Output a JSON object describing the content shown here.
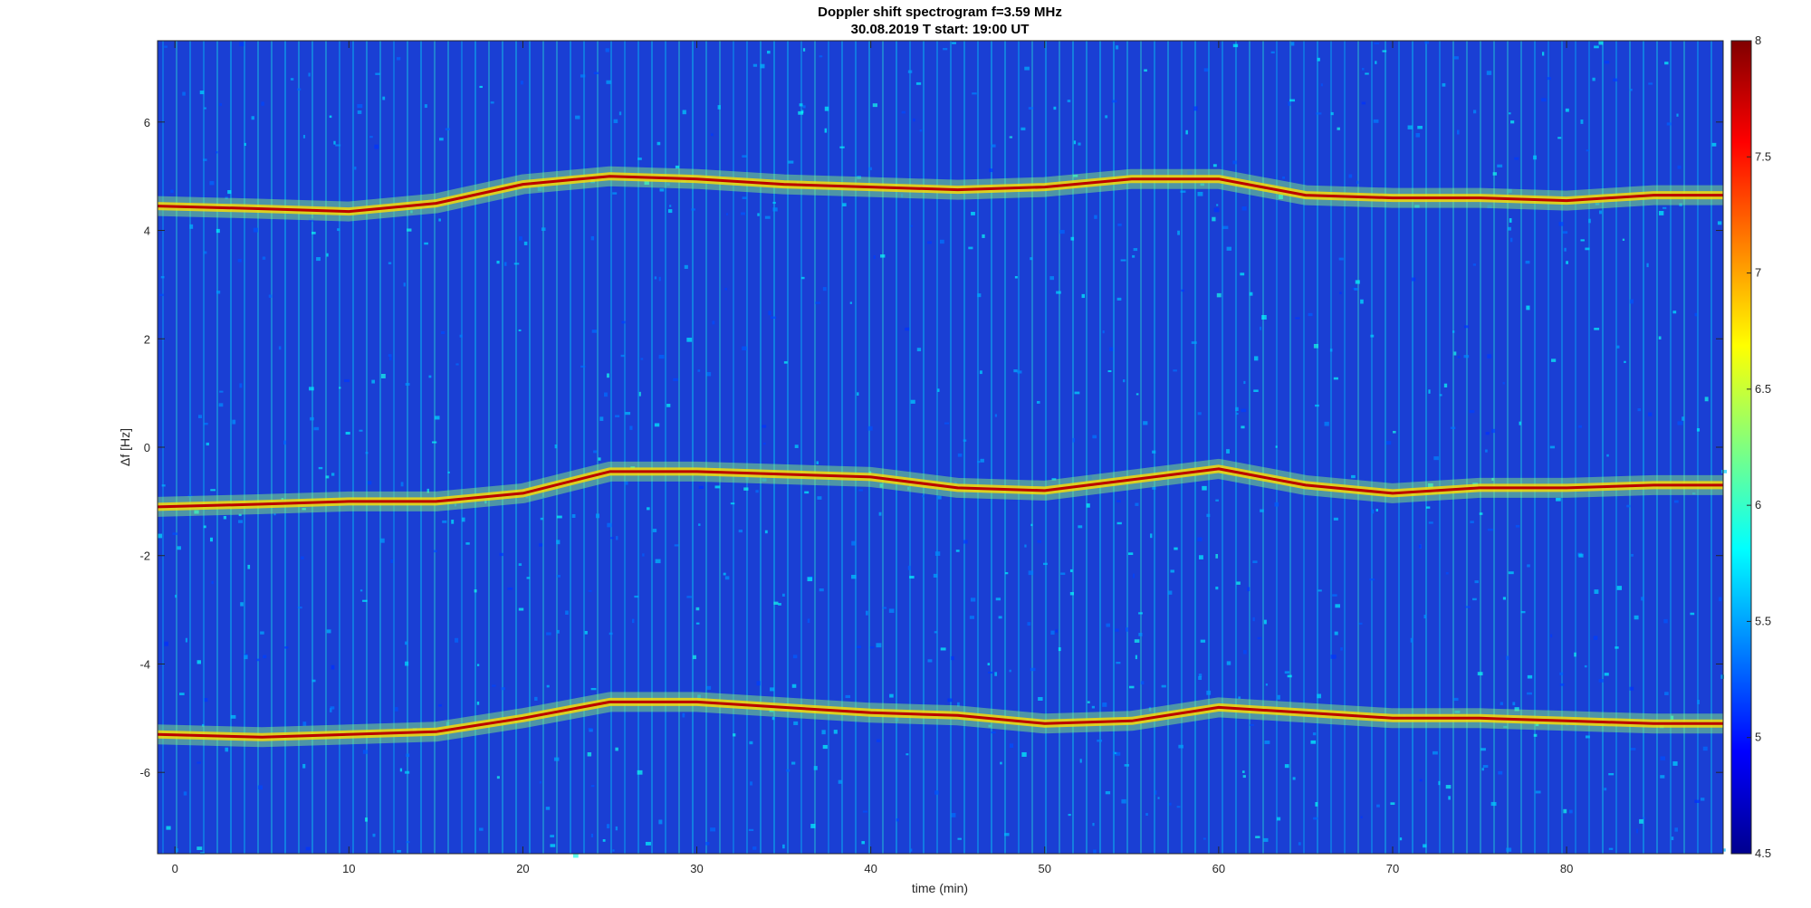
{
  "chart_data": {
    "type": "heatmap",
    "title": "Doppler shift spectrogram f=3.59 MHz",
    "subtitle": "30.08.2019    T start: 19:00 UT",
    "xlabel": "time (min)",
    "ylabel": "Δf [Hz]",
    "xlim": [
      -1,
      89
    ],
    "ylim": [
      -7.5,
      7.5
    ],
    "xticks": [
      0,
      10,
      20,
      30,
      40,
      50,
      60,
      70,
      80
    ],
    "yticks": [
      -6,
      -4,
      -2,
      0,
      2,
      4,
      6
    ],
    "colormap": "jet",
    "colorbar": {
      "range": [
        4.5,
        8
      ],
      "ticks": [
        4.5,
        5,
        5.5,
        6,
        6.5,
        7,
        7.5,
        8
      ],
      "placement": "right"
    },
    "background_level": 5.2,
    "series": [
      {
        "x": [
          -1,
          5,
          10,
          15,
          20,
          25,
          30,
          35,
          40,
          45,
          50,
          55,
          60,
          65,
          70,
          75,
          80,
          85,
          89
        ],
        "y": [
          4.45,
          4.4,
          4.35,
          4.5,
          4.85,
          5.0,
          4.95,
          4.85,
          4.8,
          4.75,
          4.8,
          4.95,
          4.95,
          4.65,
          4.6,
          4.6,
          4.55,
          4.65,
          4.65
        ],
        "level": 7.8
      },
      {
        "x": [
          -1,
          5,
          10,
          15,
          20,
          25,
          30,
          35,
          40,
          45,
          50,
          55,
          60,
          65,
          70,
          75,
          80,
          85,
          89
        ],
        "y": [
          -1.1,
          -1.05,
          -1.0,
          -1.0,
          -0.85,
          -0.45,
          -0.45,
          -0.5,
          -0.55,
          -0.75,
          -0.8,
          -0.6,
          -0.4,
          -0.7,
          -0.85,
          -0.75,
          -0.75,
          -0.7,
          -0.7
        ],
        "level": 7.8
      },
      {
        "x": [
          -1,
          5,
          10,
          15,
          20,
          25,
          30,
          35,
          40,
          45,
          50,
          55,
          60,
          65,
          70,
          75,
          80,
          85,
          89
        ],
        "y": [
          -5.3,
          -5.35,
          -5.3,
          -5.25,
          -5.0,
          -4.7,
          -4.7,
          -4.8,
          -4.9,
          -4.95,
          -5.1,
          -5.05,
          -4.8,
          -4.9,
          -5.0,
          -5.0,
          -5.05,
          -5.1,
          -5.1
        ],
        "level": 7.8
      }
    ]
  }
}
